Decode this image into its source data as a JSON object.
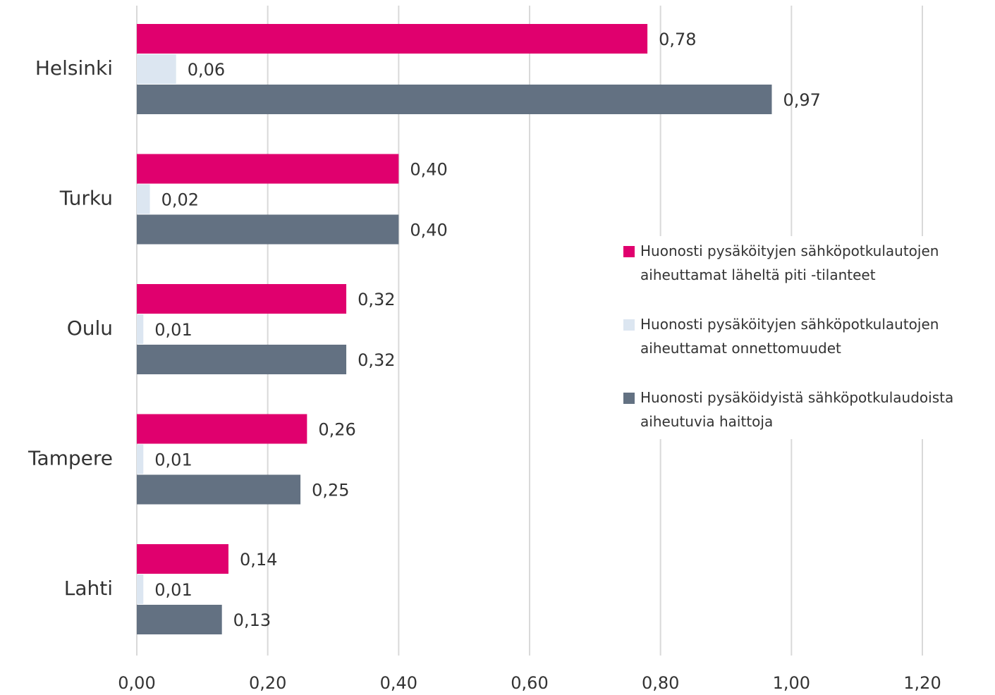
{
  "chart_data": {
    "type": "bar",
    "orientation": "horizontal",
    "categories": [
      "Helsinki",
      "Turku",
      "Oulu",
      "Tampere",
      "Lahti"
    ],
    "series": [
      {
        "name": "Huonosti pysäköityjen sähköpotkulautojen aiheuttamat läheltä piti -tilanteet",
        "color": "#e0006e",
        "values": [
          0.78,
          0.4,
          0.32,
          0.26,
          0.14
        ],
        "value_labels": [
          "0,78",
          "0,40",
          "0,32",
          "0,26",
          "0,14"
        ]
      },
      {
        "name": "Huonosti pysäköityjen sähköpotkulautojen aiheuttamat onnettomuudet",
        "color": "#dce6f1",
        "values": [
          0.06,
          0.02,
          0.01,
          0.01,
          0.01
        ],
        "value_labels": [
          "0,06",
          "0,02",
          "0,01",
          "0,01",
          "0,01"
        ]
      },
      {
        "name": "Huonosti pysäköidyistä sähköpotkulaudoista  aiheutuvia haittoja",
        "color": "#637182",
        "values": [
          0.97,
          0.4,
          0.32,
          0.25,
          0.13
        ],
        "value_labels": [
          "0,97",
          "0,40",
          "0,32",
          "0,25",
          "0,13"
        ]
      }
    ],
    "xlim": [
      0,
      1.2
    ],
    "xticks": [
      {
        "value": 0,
        "label": "0,00"
      },
      {
        "value": 0.2,
        "label": "0,20"
      },
      {
        "value": 0.4,
        "label": "0,40"
      },
      {
        "value": 0.6,
        "label": "0,60"
      },
      {
        "value": 0.8,
        "label": "0,80"
      },
      {
        "value": 1.0,
        "label": "1,00"
      },
      {
        "value": 1.2,
        "label": "1,20"
      }
    ],
    "grid": true,
    "legend": "right"
  }
}
